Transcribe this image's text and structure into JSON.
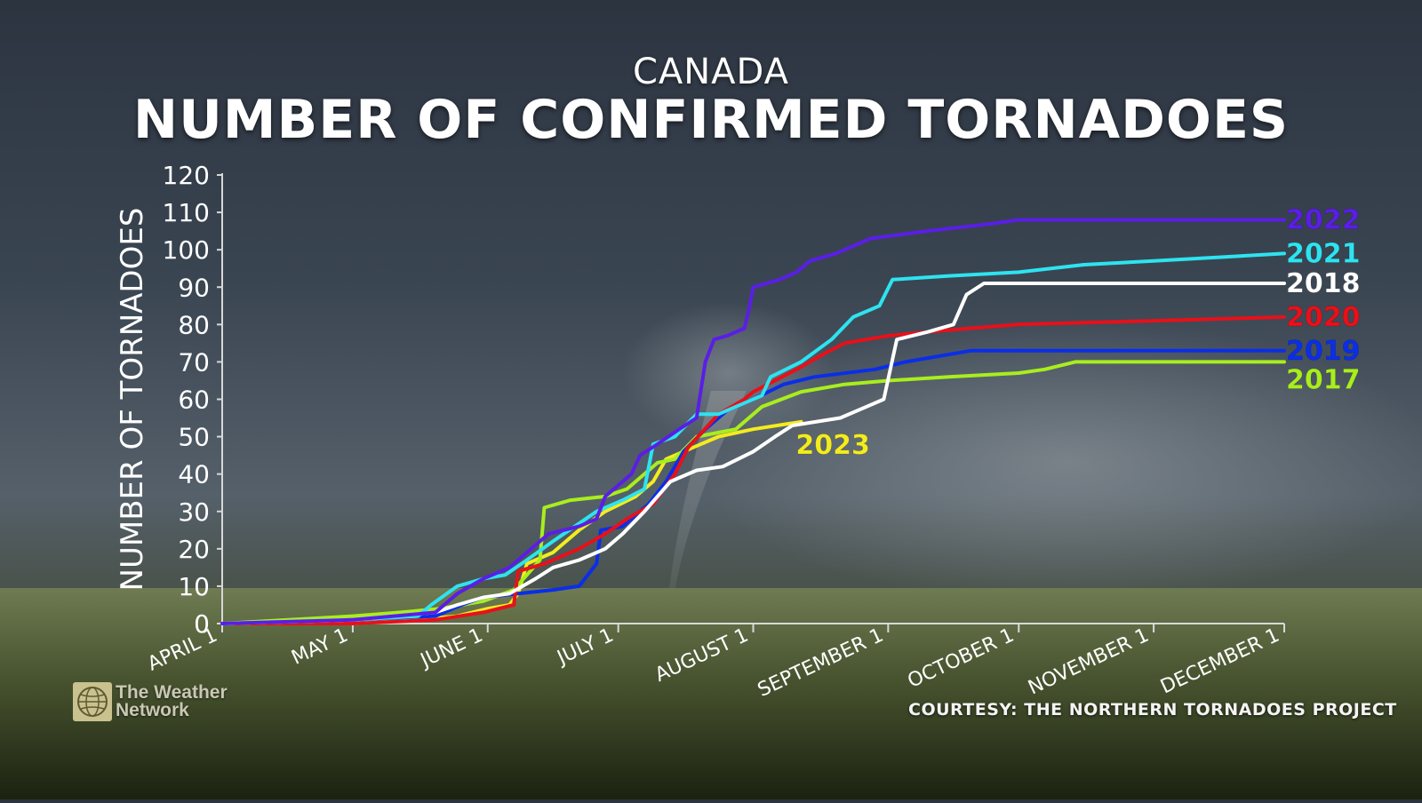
{
  "header": {
    "subtitle": "CANADA",
    "title": "NUMBER OF CONFIRMED TORNADOES"
  },
  "credit": "COURTESY: THE NORTHERN TORNADOES PROJECT",
  "logo": {
    "line1": "The Weather",
    "line2": "Network",
    "icon": "globe-icon"
  },
  "chart_data": {
    "type": "line",
    "title": "NUMBER OF CONFIRMED TORNADOES",
    "subtitle": "CANADA",
    "xlabel": "",
    "ylabel": "NUMBER OF TORNADOES",
    "ylim": [
      0,
      120
    ],
    "yticks": [
      0,
      10,
      20,
      30,
      40,
      50,
      60,
      70,
      80,
      90,
      100,
      110,
      120
    ],
    "xlim": [
      "April 1",
      "December 1"
    ],
    "xticks": [
      "APRIL 1",
      "MAY 1",
      "JUNE 1",
      "JULY 1",
      "AUGUST 1",
      "SEPTEMBER 1",
      "OCTOBER 1",
      "NOVEMBER 1",
      "DECEMBER 1"
    ],
    "grid": false,
    "legend": "series labels at right end of each line",
    "series": [
      {
        "name": "2022",
        "color": "#5a1ee6",
        "points": [
          [
            "April 1",
            0
          ],
          [
            "May 1",
            1
          ],
          [
            "May 20",
            3
          ],
          [
            "May 25",
            8
          ],
          [
            "May 31",
            12
          ],
          [
            "June 6",
            15
          ],
          [
            "June 11",
            20
          ],
          [
            "June 15",
            24
          ],
          [
            "June 22",
            26
          ],
          [
            "June 26",
            28
          ],
          [
            "June 28",
            34
          ],
          [
            "July 4",
            40
          ],
          [
            "July 6",
            45
          ],
          [
            "July 10",
            48
          ],
          [
            "July 15",
            52
          ],
          [
            "July 19",
            55
          ],
          [
            "July 21",
            70
          ],
          [
            "July 23",
            76
          ],
          [
            "July 26",
            77
          ],
          [
            "July 30",
            79
          ],
          [
            "July 31",
            84
          ],
          [
            "August 1",
            90
          ],
          [
            "August 7",
            92
          ],
          [
            "August 11",
            94
          ],
          [
            "August 14",
            97
          ],
          [
            "August 20",
            99
          ],
          [
            "August 28",
            103
          ],
          [
            "September 10",
            105
          ],
          [
            "September 25",
            107
          ],
          [
            "October 1",
            108
          ],
          [
            "December 1",
            108
          ]
        ]
      },
      {
        "name": "2021",
        "color": "#2ee3f0",
        "points": [
          [
            "April 1",
            0
          ],
          [
            "May 1",
            1
          ],
          [
            "May 16",
            2
          ],
          [
            "May 19",
            5
          ],
          [
            "May 25",
            10
          ],
          [
            "May 31",
            12
          ],
          [
            "June 5",
            13
          ],
          [
            "June 10",
            17
          ],
          [
            "June 16",
            22
          ],
          [
            "June 21",
            26
          ],
          [
            "June 26",
            30
          ],
          [
            "July 2",
            33
          ],
          [
            "July 7",
            36
          ],
          [
            "July 9",
            48
          ],
          [
            "July 14",
            50
          ],
          [
            "July 19",
            56
          ],
          [
            "July 24",
            56
          ],
          [
            "August 3",
            61
          ],
          [
            "August 5",
            66
          ],
          [
            "August 12",
            70
          ],
          [
            "August 19",
            76
          ],
          [
            "August 24",
            82
          ],
          [
            "August 30",
            85
          ],
          [
            "September 2",
            92
          ],
          [
            "September 15",
            93
          ],
          [
            "October 1",
            94
          ],
          [
            "October 16",
            96
          ],
          [
            "November 1",
            97
          ],
          [
            "November 16",
            98
          ],
          [
            "December 1",
            99
          ]
        ]
      },
      {
        "name": "2018",
        "color": "#ffffff",
        "points": [
          [
            "April 1",
            0
          ],
          [
            "May 1",
            1
          ],
          [
            "May 20",
            3
          ],
          [
            "May 25",
            5
          ],
          [
            "May 31",
            7
          ],
          [
            "June 6",
            8
          ],
          [
            "June 12",
            12
          ],
          [
            "June 16",
            15
          ],
          [
            "June 22",
            17
          ],
          [
            "June 28",
            20
          ],
          [
            "July 2",
            24
          ],
          [
            "July 7",
            30
          ],
          [
            "July 13",
            38
          ],
          [
            "July 19",
            41
          ],
          [
            "July 25",
            42
          ],
          [
            "August 1",
            46
          ],
          [
            "August 6",
            50
          ],
          [
            "August 10",
            53
          ],
          [
            "August 21",
            55
          ],
          [
            "August 27",
            58
          ],
          [
            "August 31",
            60
          ],
          [
            "September 3",
            76
          ],
          [
            "September 10",
            78
          ],
          [
            "September 16",
            80
          ],
          [
            "September 19",
            88
          ],
          [
            "September 23",
            91
          ],
          [
            "December 1",
            91
          ]
        ]
      },
      {
        "name": "2020",
        "color": "#e8101a",
        "points": [
          [
            "April 1",
            0
          ],
          [
            "May 1",
            0
          ],
          [
            "May 20",
            1
          ],
          [
            "May 31",
            3
          ],
          [
            "June 7",
            5
          ],
          [
            "June 8",
            14
          ],
          [
            "June 14",
            16
          ],
          [
            "June 22",
            20
          ],
          [
            "June 28",
            24
          ],
          [
            "July 3",
            28
          ],
          [
            "July 9",
            32
          ],
          [
            "July 14",
            40
          ],
          [
            "July 17",
            47
          ],
          [
            "July 24",
            56
          ],
          [
            "July 30",
            60
          ],
          [
            "August 1",
            62
          ],
          [
            "August 11",
            68
          ],
          [
            "August 17",
            72
          ],
          [
            "August 22",
            75
          ],
          [
            "September 1",
            77
          ],
          [
            "September 10",
            78
          ],
          [
            "September 20",
            79
          ],
          [
            "October 1",
            80
          ],
          [
            "November 1",
            81
          ],
          [
            "December 1",
            82
          ]
        ]
      },
      {
        "name": "2019",
        "color": "#0a2ee8",
        "points": [
          [
            "April 1",
            0
          ],
          [
            "May 1",
            1
          ],
          [
            "May 20",
            2
          ],
          [
            "May 26",
            5
          ],
          [
            "May 31",
            7
          ],
          [
            "June 8",
            8
          ],
          [
            "June 16",
            9
          ],
          [
            "June 22",
            10
          ],
          [
            "June 26",
            16
          ],
          [
            "June 27",
            25
          ],
          [
            "July 2",
            26
          ],
          [
            "July 8",
            32
          ],
          [
            "July 12",
            38
          ],
          [
            "July 16",
            46
          ],
          [
            "July 21",
            52
          ],
          [
            "July 26",
            57
          ],
          [
            "August 1",
            60
          ],
          [
            "August 8",
            64
          ],
          [
            "August 15",
            66
          ],
          [
            "August 29",
            68
          ],
          [
            "September 5",
            70
          ],
          [
            "September 15",
            72
          ],
          [
            "September 20",
            73
          ],
          [
            "December 1",
            73
          ]
        ]
      },
      {
        "name": "2017",
        "color": "#a8ee1e",
        "points": [
          [
            "April 1",
            0
          ],
          [
            "May 1",
            2
          ],
          [
            "May 12",
            3
          ],
          [
            "May 21",
            4
          ],
          [
            "May 31",
            6
          ],
          [
            "June 7",
            9
          ],
          [
            "June 13",
            17
          ],
          [
            "June 14",
            31
          ],
          [
            "June 20",
            33
          ],
          [
            "June 28",
            34
          ],
          [
            "July 3",
            36
          ],
          [
            "July 10",
            43
          ],
          [
            "July 14",
            44
          ],
          [
            "July 19",
            50
          ],
          [
            "July 28",
            52
          ],
          [
            "August 3",
            58
          ],
          [
            "August 12",
            62
          ],
          [
            "August 22",
            64
          ],
          [
            "September 1",
            65
          ],
          [
            "September 15",
            66
          ],
          [
            "October 1",
            67
          ],
          [
            "October 7",
            68
          ],
          [
            "October 14",
            70
          ],
          [
            "December 1",
            70
          ]
        ]
      },
      {
        "name": "2023",
        "color": "#f3ec1e",
        "points": [
          [
            "April 1",
            0
          ],
          [
            "May 1",
            0
          ],
          [
            "May 15",
            1
          ],
          [
            "May 25",
            2
          ],
          [
            "June 1",
            4
          ],
          [
            "June 6",
            5
          ],
          [
            "June 8",
            8
          ],
          [
            "June 10",
            16
          ],
          [
            "June 16",
            19
          ],
          [
            "June 22",
            25
          ],
          [
            "June 28",
            30
          ],
          [
            "July 5",
            34
          ],
          [
            "July 9",
            38
          ],
          [
            "July 12",
            44
          ],
          [
            "July 18",
            47
          ],
          [
            "July 24",
            50
          ],
          [
            "August 1",
            52
          ],
          [
            "August 12",
            54
          ]
        ]
      }
    ]
  }
}
